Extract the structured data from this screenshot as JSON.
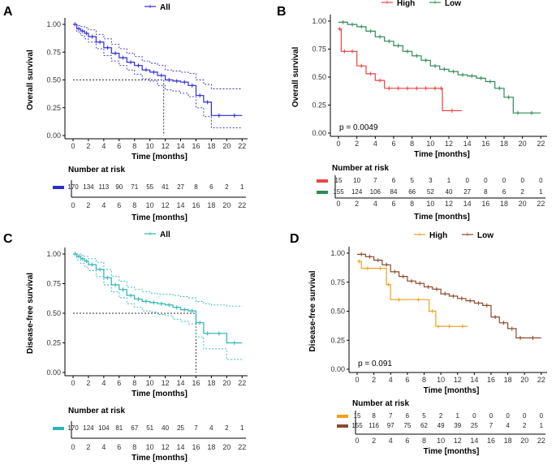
{
  "chart_data": [
    {
      "panel": "A",
      "type": "line",
      "title": "",
      "xlabel": "Time [months]",
      "ylabel": "Overall survival",
      "xticks": [
        0,
        2,
        4,
        6,
        8,
        10,
        12,
        14,
        16,
        18,
        20,
        22
      ],
      "xlim": [
        0,
        22.5
      ],
      "yticks": [
        "0.00",
        "0.25",
        "0.50",
        "0.75",
        "1.00"
      ],
      "ylim": [
        0,
        1
      ],
      "legend": [
        {
          "name": "All",
          "color": "#2c2cd4"
        }
      ],
      "series": [
        {
          "name": "All",
          "color": "#2c2cd4",
          "x": [
            0,
            0.5,
            1,
            1.5,
            2,
            3,
            4,
            5,
            6,
            7,
            8,
            9,
            10,
            11,
            12,
            13,
            14,
            15,
            16,
            17,
            18,
            20,
            22
          ],
          "y": [
            1,
            0.96,
            0.94,
            0.92,
            0.89,
            0.84,
            0.79,
            0.74,
            0.7,
            0.66,
            0.63,
            0.59,
            0.57,
            0.54,
            0.5,
            0.49,
            0.48,
            0.45,
            0.36,
            0.3,
            0.18,
            0.18,
            0.18
          ],
          "lower": [
            1,
            0.93,
            0.9,
            0.87,
            0.84,
            0.78,
            0.72,
            0.67,
            0.63,
            0.59,
            0.55,
            0.51,
            0.49,
            0.45,
            0.41,
            0.4,
            0.38,
            0.35,
            0.25,
            0.17,
            0.07,
            0.07,
            0.07
          ],
          "upper": [
            1,
            0.99,
            0.98,
            0.97,
            0.95,
            0.91,
            0.87,
            0.82,
            0.78,
            0.74,
            0.71,
            0.67,
            0.65,
            0.63,
            0.59,
            0.58,
            0.57,
            0.56,
            0.5,
            0.46,
            0.42,
            0.42,
            0.42
          ]
        }
      ],
      "median_line": {
        "x": 11.8,
        "y": 0.5
      },
      "risk_table": {
        "title": "Number at risk",
        "xlabel": "Time [months]",
        "times": [
          0,
          2,
          4,
          6,
          8,
          10,
          12,
          14,
          16,
          18,
          20,
          22
        ],
        "rows": [
          {
            "color": "#2c2cd4",
            "counts": [
              "170",
              "134",
              "113",
              "90",
              "71",
              "55",
              "41",
              "27",
              "8",
              "6",
              "2",
              "1"
            ]
          }
        ]
      }
    },
    {
      "panel": "B",
      "type": "line",
      "title": "",
      "xlabel": "Time [months]",
      "ylabel": "Overall survival",
      "xticks": [
        0,
        2,
        4,
        6,
        8,
        10,
        12,
        14,
        16,
        18,
        20,
        22
      ],
      "xlim": [
        0,
        22.5
      ],
      "yticks": [
        "0.00",
        "0.25",
        "0.50",
        "0.75",
        "1.00"
      ],
      "ylim": [
        0,
        1
      ],
      "pvalue": "p = 0.0049",
      "legend": [
        {
          "name": "High",
          "color": "#e84545"
        },
        {
          "name": "Low",
          "color": "#2e8b57"
        }
      ],
      "series": [
        {
          "name": "Low",
          "color": "#2e8b57",
          "x": [
            0,
            1,
            2,
            3,
            4,
            5,
            6,
            7,
            8,
            9,
            10,
            11,
            12,
            13,
            14,
            15,
            16,
            17,
            18,
            19,
            20,
            22
          ],
          "y": [
            0.99,
            0.97,
            0.95,
            0.91,
            0.86,
            0.82,
            0.78,
            0.73,
            0.69,
            0.65,
            0.6,
            0.57,
            0.55,
            0.52,
            0.51,
            0.49,
            0.46,
            0.4,
            0.32,
            0.18,
            0.18,
            0.18
          ]
        },
        {
          "name": "High",
          "color": "#e84545",
          "x": [
            0,
            0.3,
            1,
            2,
            3,
            4,
            5,
            6,
            7,
            8,
            9,
            10,
            11,
            11.3,
            13.4
          ],
          "y": [
            0.93,
            0.73,
            0.73,
            0.6,
            0.53,
            0.47,
            0.4,
            0.4,
            0.4,
            0.4,
            0.4,
            0.4,
            0.4,
            0.2,
            0.2
          ]
        }
      ],
      "risk_table": {
        "title": "Number at risk",
        "xlabel": "Time [months]",
        "times": [
          0,
          2,
          4,
          6,
          8,
          10,
          12,
          14,
          16,
          18,
          20,
          22
        ],
        "rows": [
          {
            "color": "#e84545",
            "counts": [
              "15",
              "10",
              "7",
              "6",
              "5",
              "3",
              "1",
              "0",
              "0",
              "0",
              "0",
              "0"
            ]
          },
          {
            "color": "#2e8b57",
            "counts": [
              "155",
              "124",
              "106",
              "84",
              "66",
              "52",
              "40",
              "27",
              "8",
              "6",
              "2",
              "1"
            ]
          }
        ]
      }
    },
    {
      "panel": "C",
      "type": "line",
      "title": "",
      "xlabel": "Time [months]",
      "ylabel": "Disease-free survival",
      "xticks": [
        0,
        2,
        4,
        6,
        8,
        10,
        12,
        14,
        16,
        18,
        20,
        22
      ],
      "xlim": [
        0,
        22.5
      ],
      "yticks": [
        "0.00",
        "0.25",
        "0.50",
        "0.75",
        "1.00"
      ],
      "ylim": [
        0,
        1
      ],
      "legend": [
        {
          "name": "All",
          "color": "#2ab5b5"
        }
      ],
      "series": [
        {
          "name": "All",
          "color": "#2ab5b5",
          "x": [
            0,
            0.5,
            1,
            1.5,
            2,
            3,
            4,
            5,
            6,
            7,
            8,
            9,
            10,
            11,
            12,
            13,
            14,
            15,
            16,
            17,
            18,
            20,
            22
          ],
          "y": [
            1,
            0.98,
            0.96,
            0.94,
            0.91,
            0.87,
            0.8,
            0.74,
            0.7,
            0.65,
            0.62,
            0.6,
            0.59,
            0.58,
            0.57,
            0.55,
            0.53,
            0.52,
            0.42,
            0.33,
            0.33,
            0.25,
            0.25
          ],
          "lower": [
            1,
            0.95,
            0.92,
            0.89,
            0.86,
            0.81,
            0.74,
            0.68,
            0.63,
            0.58,
            0.55,
            0.52,
            0.51,
            0.49,
            0.48,
            0.45,
            0.43,
            0.41,
            0.3,
            0.2,
            0.2,
            0.11,
            0.11
          ],
          "upper": [
            1,
            1.0,
            0.99,
            0.98,
            0.96,
            0.93,
            0.87,
            0.81,
            0.77,
            0.72,
            0.7,
            0.68,
            0.67,
            0.66,
            0.66,
            0.65,
            0.64,
            0.63,
            0.6,
            0.58,
            0.57,
            0.56,
            0.56
          ]
        }
      ],
      "median_line": {
        "x": 16,
        "y": 0.5
      },
      "risk_table": {
        "title": "Number at risk",
        "xlabel": "Time [months]",
        "times": [
          0,
          2,
          4,
          6,
          8,
          10,
          12,
          14,
          16,
          18,
          20,
          22
        ],
        "rows": [
          {
            "color": "#2ab5b5",
            "counts": [
              "170",
              "124",
              "104",
              "81",
              "67",
              "51",
              "40",
              "25",
              "7",
              "4",
              "2",
              "1"
            ]
          }
        ]
      }
    },
    {
      "panel": "D",
      "type": "line",
      "title": "",
      "xlabel": "Time [months]",
      "ylabel": "Disease-free survival",
      "xticks": [
        0,
        2,
        4,
        6,
        8,
        10,
        12,
        14,
        16,
        18,
        20,
        22
      ],
      "xlim": [
        0,
        22.5
      ],
      "yticks": [
        "0.00",
        "0.25",
        "0.50",
        "0.75",
        "1.00"
      ],
      "ylim": [
        0,
        1
      ],
      "pvalue": "p = 0.091",
      "legend": [
        {
          "name": "High",
          "color": "#f0a020"
        },
        {
          "name": "Low",
          "color": "#8b4a2b"
        }
      ],
      "series": [
        {
          "name": "Low",
          "color": "#8b4a2b",
          "x": [
            0,
            1,
            2,
            3,
            4,
            5,
            6,
            7,
            8,
            9,
            10,
            11,
            12,
            13,
            14,
            15,
            16,
            17,
            18,
            19,
            20,
            22
          ],
          "y": [
            0.99,
            0.97,
            0.94,
            0.9,
            0.84,
            0.8,
            0.76,
            0.74,
            0.71,
            0.69,
            0.65,
            0.63,
            0.61,
            0.59,
            0.57,
            0.55,
            0.45,
            0.4,
            0.35,
            0.27,
            0.27,
            0.27
          ]
        },
        {
          "name": "High",
          "color": "#f0a020",
          "x": [
            0,
            0.5,
            2,
            3.5,
            4,
            6,
            8.6,
            9.4,
            10,
            12,
            13.2
          ],
          "y": [
            0.93,
            0.87,
            0.87,
            0.73,
            0.6,
            0.6,
            0.5,
            0.37,
            0.37,
            0.37,
            0.37
          ]
        }
      ],
      "risk_table": {
        "title": "Number at risk",
        "xlabel": "Time [months]",
        "times": [
          0,
          2,
          4,
          6,
          8,
          10,
          12,
          14,
          16,
          18,
          20,
          22
        ],
        "rows": [
          {
            "color": "#f0a020",
            "counts": [
              "15",
              "8",
              "7",
              "6",
              "5",
              "2",
              "1",
              "0",
              "0",
              "0",
              "0",
              "0"
            ]
          },
          {
            "color": "#8b4a2b",
            "counts": [
              "155",
              "116",
              "97",
              "75",
              "62",
              "49",
              "39",
              "25",
              "7",
              "4",
              "2",
              "1"
            ]
          }
        ]
      }
    }
  ]
}
